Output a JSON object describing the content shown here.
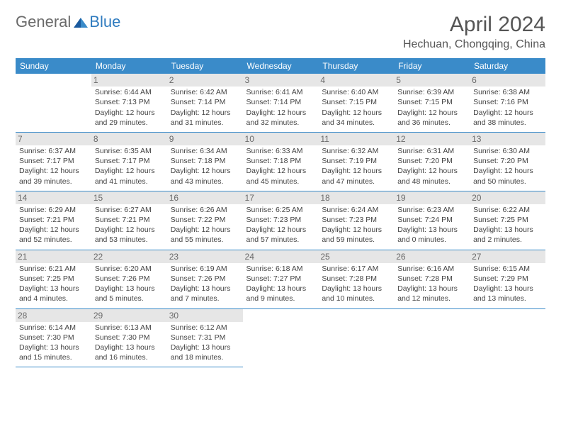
{
  "logo": {
    "text1": "General",
    "text2": "Blue"
  },
  "title": "April 2024",
  "location": "Hechuan, Chongqing, China",
  "weekdays": [
    "Sunday",
    "Monday",
    "Tuesday",
    "Wednesday",
    "Thursday",
    "Friday",
    "Saturday"
  ],
  "colors": {
    "header_bg": "#3a8bc9",
    "header_text": "#ffffff",
    "rule": "#3a8bc9",
    "daynum_shade": "#e6e6e6",
    "text": "#444444",
    "title_text": "#555555",
    "logo_gray": "#6a6a6a",
    "logo_blue": "#2f7bbf"
  },
  "weeks": [
    [
      null,
      {
        "n": "1",
        "sr": "6:44 AM",
        "ss": "7:13 PM",
        "dl": "12 hours and 29 minutes."
      },
      {
        "n": "2",
        "sr": "6:42 AM",
        "ss": "7:14 PM",
        "dl": "12 hours and 31 minutes."
      },
      {
        "n": "3",
        "sr": "6:41 AM",
        "ss": "7:14 PM",
        "dl": "12 hours and 32 minutes."
      },
      {
        "n": "4",
        "sr": "6:40 AM",
        "ss": "7:15 PM",
        "dl": "12 hours and 34 minutes."
      },
      {
        "n": "5",
        "sr": "6:39 AM",
        "ss": "7:15 PM",
        "dl": "12 hours and 36 minutes."
      },
      {
        "n": "6",
        "sr": "6:38 AM",
        "ss": "7:16 PM",
        "dl": "12 hours and 38 minutes."
      }
    ],
    [
      {
        "n": "7",
        "sr": "6:37 AM",
        "ss": "7:17 PM",
        "dl": "12 hours and 39 minutes."
      },
      {
        "n": "8",
        "sr": "6:35 AM",
        "ss": "7:17 PM",
        "dl": "12 hours and 41 minutes."
      },
      {
        "n": "9",
        "sr": "6:34 AM",
        "ss": "7:18 PM",
        "dl": "12 hours and 43 minutes."
      },
      {
        "n": "10",
        "sr": "6:33 AM",
        "ss": "7:18 PM",
        "dl": "12 hours and 45 minutes."
      },
      {
        "n": "11",
        "sr": "6:32 AM",
        "ss": "7:19 PM",
        "dl": "12 hours and 47 minutes."
      },
      {
        "n": "12",
        "sr": "6:31 AM",
        "ss": "7:20 PM",
        "dl": "12 hours and 48 minutes."
      },
      {
        "n": "13",
        "sr": "6:30 AM",
        "ss": "7:20 PM",
        "dl": "12 hours and 50 minutes."
      }
    ],
    [
      {
        "n": "14",
        "sr": "6:29 AM",
        "ss": "7:21 PM",
        "dl": "12 hours and 52 minutes."
      },
      {
        "n": "15",
        "sr": "6:27 AM",
        "ss": "7:21 PM",
        "dl": "12 hours and 53 minutes."
      },
      {
        "n": "16",
        "sr": "6:26 AM",
        "ss": "7:22 PM",
        "dl": "12 hours and 55 minutes."
      },
      {
        "n": "17",
        "sr": "6:25 AM",
        "ss": "7:23 PM",
        "dl": "12 hours and 57 minutes."
      },
      {
        "n": "18",
        "sr": "6:24 AM",
        "ss": "7:23 PM",
        "dl": "12 hours and 59 minutes."
      },
      {
        "n": "19",
        "sr": "6:23 AM",
        "ss": "7:24 PM",
        "dl": "13 hours and 0 minutes."
      },
      {
        "n": "20",
        "sr": "6:22 AM",
        "ss": "7:25 PM",
        "dl": "13 hours and 2 minutes."
      }
    ],
    [
      {
        "n": "21",
        "sr": "6:21 AM",
        "ss": "7:25 PM",
        "dl": "13 hours and 4 minutes."
      },
      {
        "n": "22",
        "sr": "6:20 AM",
        "ss": "7:26 PM",
        "dl": "13 hours and 5 minutes."
      },
      {
        "n": "23",
        "sr": "6:19 AM",
        "ss": "7:26 PM",
        "dl": "13 hours and 7 minutes."
      },
      {
        "n": "24",
        "sr": "6:18 AM",
        "ss": "7:27 PM",
        "dl": "13 hours and 9 minutes."
      },
      {
        "n": "25",
        "sr": "6:17 AM",
        "ss": "7:28 PM",
        "dl": "13 hours and 10 minutes."
      },
      {
        "n": "26",
        "sr": "6:16 AM",
        "ss": "7:28 PM",
        "dl": "13 hours and 12 minutes."
      },
      {
        "n": "27",
        "sr": "6:15 AM",
        "ss": "7:29 PM",
        "dl": "13 hours and 13 minutes."
      }
    ],
    [
      {
        "n": "28",
        "sr": "6:14 AM",
        "ss": "7:30 PM",
        "dl": "13 hours and 15 minutes."
      },
      {
        "n": "29",
        "sr": "6:13 AM",
        "ss": "7:30 PM",
        "dl": "13 hours and 16 minutes."
      },
      {
        "n": "30",
        "sr": "6:12 AM",
        "ss": "7:31 PM",
        "dl": "13 hours and 18 minutes."
      },
      null,
      null,
      null,
      null
    ]
  ],
  "labels": {
    "sunrise": "Sunrise:",
    "sunset": "Sunset:",
    "daylight": "Daylight:"
  }
}
